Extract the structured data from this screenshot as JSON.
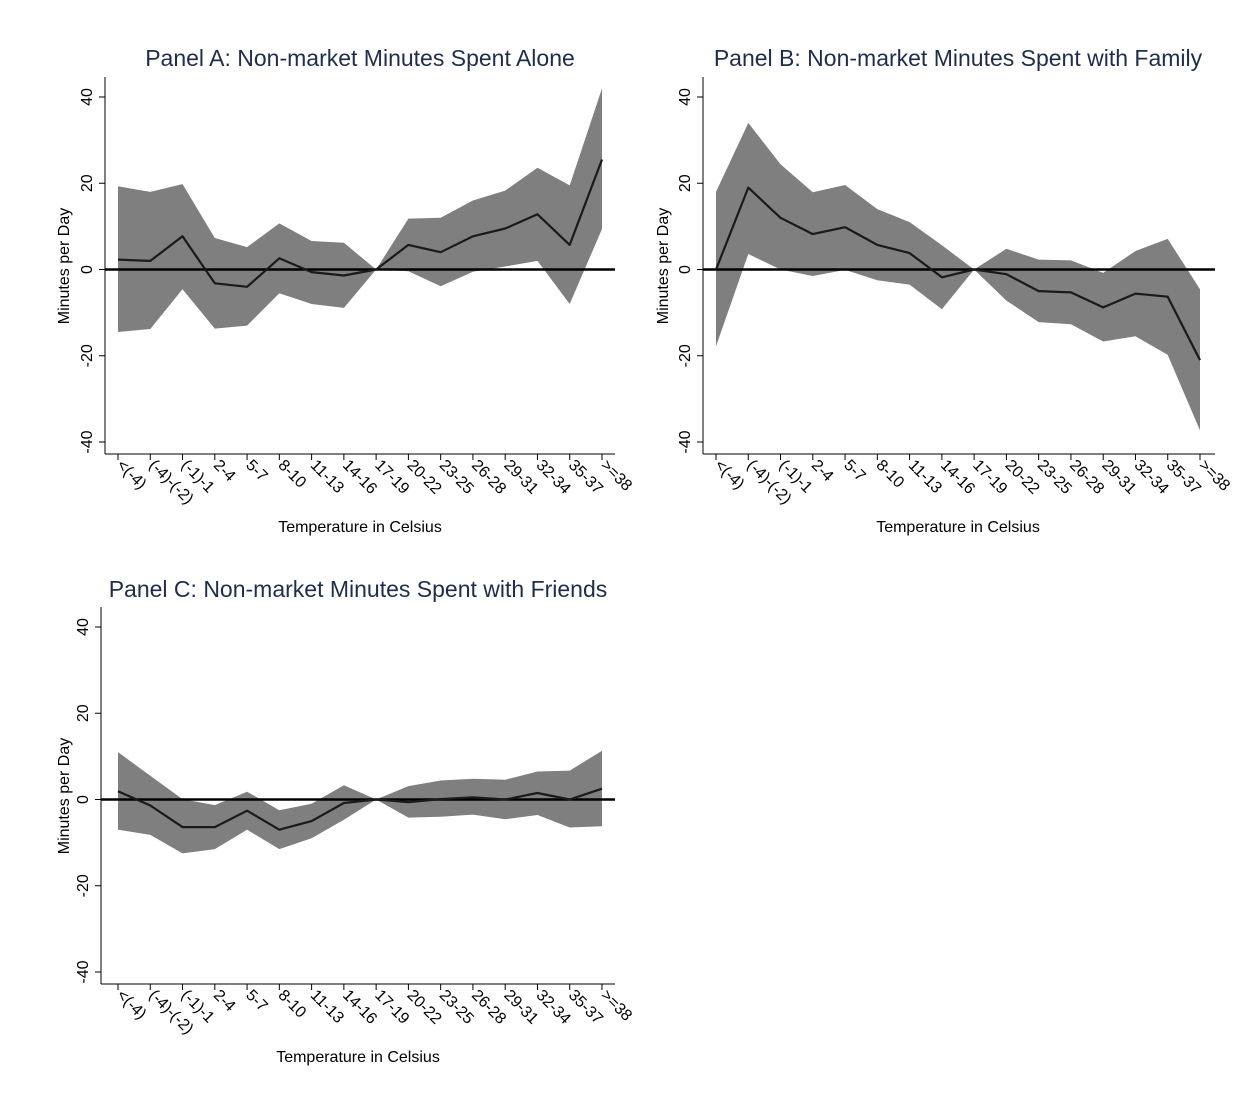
{
  "chart_data": [
    {
      "type": "line",
      "title": "Panel A: Non-market Minutes Spent Alone",
      "xlabel": "Temperature in Celsius",
      "ylabel": "Minutes per Day",
      "categories": [
        "<(-4)",
        "(-4)-(-2)",
        "(-1)-1",
        "2-4",
        "5-7",
        "8-10",
        "11-13",
        "14-16",
        "17-19",
        "20-22",
        "23-25",
        "26-28",
        "29-31",
        "32-34",
        "35-37",
        ">=38"
      ],
      "ylim": [
        -40,
        40
      ],
      "yticks": [
        -40,
        -20,
        0,
        20,
        40
      ],
      "reference_line": 0,
      "series": [
        {
          "values": [
            2.3,
            2.0,
            7.7,
            -3.2,
            -4.0,
            2.6,
            -0.6,
            -1.4,
            0.0,
            5.7,
            4.0,
            7.7,
            9.5,
            12.8,
            5.7,
            25.5
          ]
        }
      ],
      "ci_lower": [
        -14.5,
        -13.8,
        -4.6,
        -13.7,
        -13.0,
        -5.5,
        -8.0,
        -8.9,
        0.0,
        -0.4,
        -3.9,
        -0.5,
        0.7,
        2.0,
        -8.0,
        9.4
      ],
      "ci_upper": [
        19.3,
        18.0,
        19.8,
        7.3,
        5.2,
        10.7,
        6.6,
        6.2,
        0.0,
        11.8,
        12.0,
        16.0,
        18.3,
        23.6,
        19.5,
        42.0
      ]
    },
    {
      "type": "line",
      "title": "Panel B: Non-market Minutes Spent with Family",
      "xlabel": "Temperature in Celsius",
      "ylabel": "Minutes per Day",
      "categories": [
        "<(-4)",
        "(-4)-(-2)",
        "(-1)-1",
        "2-4",
        "5-7",
        "8-10",
        "11-13",
        "14-16",
        "17-19",
        "20-22",
        "23-25",
        "26-28",
        "29-31",
        "32-34",
        "35-37",
        ">=38"
      ],
      "ylim": [
        -40,
        40
      ],
      "yticks": [
        -40,
        -20,
        0,
        20,
        40
      ],
      "reference_line": 0,
      "series": [
        {
          "values": [
            0.0,
            19.0,
            12.0,
            8.2,
            9.8,
            5.7,
            3.8,
            -1.8,
            0.0,
            -1.1,
            -5.0,
            -5.3,
            -8.8,
            -5.6,
            -6.3,
            -21.0
          ]
        }
      ],
      "ci_lower": [
        -17.8,
        3.6,
        0.0,
        -1.5,
        -0.1,
        -2.5,
        -3.5,
        -9.2,
        0.0,
        -7.2,
        -12.2,
        -12.7,
        -16.7,
        -15.5,
        -19.8,
        -37.3
      ],
      "ci_upper": [
        18.0,
        34.0,
        24.4,
        17.9,
        19.6,
        14.0,
        11.0,
        5.6,
        0.0,
        4.8,
        2.3,
        2.1,
        -0.8,
        4.3,
        7.1,
        -4.6
      ]
    },
    {
      "type": "line",
      "title": "Panel C: Non-market Minutes Spent with Friends",
      "xlabel": "Temperature in Celsius",
      "ylabel": "Minutes per Day",
      "categories": [
        "<(-4)",
        "(-4)-(-2)",
        "(-1)-1",
        "2-4",
        "5-7",
        "8-10",
        "11-13",
        "14-16",
        "17-19",
        "20-22",
        "23-25",
        "26-28",
        "29-31",
        "32-34",
        "35-37",
        ">=38"
      ],
      "ylim": [
        -40,
        40
      ],
      "yticks": [
        -40,
        -20,
        0,
        20,
        40
      ],
      "reference_line": 0,
      "series": [
        {
          "values": [
            1.9,
            -1.4,
            -6.4,
            -6.4,
            -2.6,
            -7.0,
            -5.0,
            -0.8,
            0.0,
            -0.6,
            0.1,
            0.5,
            0.0,
            1.5,
            0.0,
            2.5
          ]
        }
      ],
      "ci_lower": [
        -7.0,
        -8.2,
        -12.5,
        -11.5,
        -7.0,
        -11.5,
        -9.0,
        -4.7,
        0.0,
        -4.2,
        -4.0,
        -3.5,
        -4.6,
        -3.6,
        -6.5,
        -6.2
      ],
      "ci_upper": [
        11.0,
        5.5,
        0.1,
        -1.3,
        1.8,
        -2.5,
        -1.0,
        3.3,
        0.0,
        3.1,
        4.4,
        4.8,
        4.6,
        6.5,
        6.7,
        11.3
      ]
    }
  ],
  "colors": {
    "title": "#1f2d4d",
    "band": "#7f7f7f",
    "line": "#1a1a1a",
    "axis": "#000000"
  }
}
